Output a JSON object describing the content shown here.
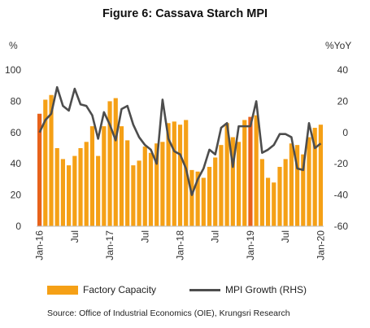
{
  "chart_data": {
    "type": "bar",
    "title": "Figure 6: Cassava Starch MPI",
    "y_left_unit": "%",
    "y_right_unit": "%YoY",
    "ylim_left": [
      0,
      100
    ],
    "ylim_right": [
      -60,
      40
    ],
    "y_left_ticks": [
      "0",
      "20",
      "40",
      "60",
      "80",
      "100"
    ],
    "y_right_ticks": [
      "-60",
      "-40",
      "-20",
      "0",
      "20",
      "40"
    ],
    "x_ticks": [
      "Jan-16",
      "Jul",
      "Jan-17",
      "Jul",
      "Jan-18",
      "Jul",
      "Jan-19",
      "Jul",
      "Jan-20"
    ],
    "x_tick_indices": [
      0,
      6,
      12,
      18,
      24,
      30,
      36,
      42,
      48
    ],
    "grid": false,
    "legend_position": "bottom",
    "series": [
      {
        "name": "Factory Capacity",
        "kind": "bar",
        "axis": "left",
        "color": "#F5A016",
        "values": [
          72,
          81,
          84,
          50,
          43,
          39,
          45,
          50,
          54,
          64,
          45,
          64,
          80,
          82,
          64,
          55,
          39,
          42,
          51,
          47,
          53,
          54,
          66,
          67,
          65,
          68,
          36,
          35,
          31,
          38,
          44,
          52,
          66,
          57,
          54,
          68,
          70,
          71,
          43,
          31,
          28,
          38,
          43,
          53,
          52,
          46,
          57,
          63,
          65
        ]
      },
      {
        "name": "MPI Growth (RHS)",
        "kind": "line",
        "axis": "right",
        "color": "#4D4D4D",
        "values": [
          0,
          8,
          12,
          29,
          17,
          14,
          28,
          18,
          17,
          11,
          -4,
          13,
          5,
          -5,
          15,
          17,
          5,
          -3,
          -8,
          -11,
          -20,
          21,
          -4,
          -12,
          -14,
          -23,
          -40,
          -30,
          -23,
          -11,
          -14,
          3,
          6,
          -22,
          4,
          4,
          4,
          20,
          -13,
          -11,
          -8,
          -1,
          -1,
          -3,
          -23,
          -24,
          6,
          -10,
          -7
        ]
      }
    ],
    "highlight_bars": [
      0,
      36
    ],
    "highlight_color": "#E8621A"
  },
  "source": "Source: Office of Industrial Economics (OIE), Krungsri Research"
}
